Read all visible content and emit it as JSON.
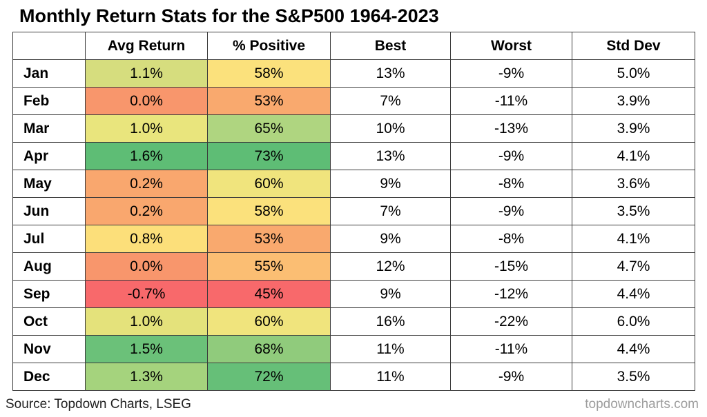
{
  "title": "Monthly Return Stats for the S&P500  1964-2023",
  "table": {
    "columns": [
      "",
      "Avg Return",
      "% Positive",
      "Best",
      "Worst",
      "Std Dev"
    ],
    "column_keys": [
      "avg-return",
      "pct-positive",
      "best",
      "worst",
      "std-dev"
    ],
    "rows": [
      {
        "month": "Jan",
        "cells": [
          {
            "v": "1.1%",
            "bg": "#D6DD7E"
          },
          {
            "v": "58%",
            "bg": "#FBE17C"
          },
          {
            "v": "13%"
          },
          {
            "v": "-9%"
          },
          {
            "v": "5.0%"
          }
        ]
      },
      {
        "month": "Feb",
        "cells": [
          {
            "v": "0.0%",
            "bg": "#F8966C"
          },
          {
            "v": "53%",
            "bg": "#F9A96E"
          },
          {
            "v": "7%"
          },
          {
            "v": "-11%"
          },
          {
            "v": "3.9%"
          }
        ]
      },
      {
        "month": "Mar",
        "cells": [
          {
            "v": "1.0%",
            "bg": "#E9E57D"
          },
          {
            "v": "65%",
            "bg": "#AFD580"
          },
          {
            "v": "10%"
          },
          {
            "v": "-13%"
          },
          {
            "v": "3.9%"
          }
        ]
      },
      {
        "month": "Apr",
        "cells": [
          {
            "v": "1.6%",
            "bg": "#5EBD75"
          },
          {
            "v": "73%",
            "bg": "#5EBD75"
          },
          {
            "v": "13%"
          },
          {
            "v": "-9%"
          },
          {
            "v": "4.1%"
          }
        ]
      },
      {
        "month": "May",
        "cells": [
          {
            "v": "0.2%",
            "bg": "#F9A76E"
          },
          {
            "v": "60%",
            "bg": "#F0E47D"
          },
          {
            "v": "9%"
          },
          {
            "v": "-8%"
          },
          {
            "v": "3.6%"
          }
        ]
      },
      {
        "month": "Jun",
        "cells": [
          {
            "v": "0.2%",
            "bg": "#F9A76E"
          },
          {
            "v": "58%",
            "bg": "#FBE17C"
          },
          {
            "v": "7%"
          },
          {
            "v": "-9%"
          },
          {
            "v": "3.5%"
          }
        ]
      },
      {
        "month": "Jul",
        "cells": [
          {
            "v": "0.8%",
            "bg": "#FCDF7A"
          },
          {
            "v": "53%",
            "bg": "#F9A96E"
          },
          {
            "v": "9%"
          },
          {
            "v": "-8%"
          },
          {
            "v": "4.1%"
          }
        ]
      },
      {
        "month": "Aug",
        "cells": [
          {
            "v": "0.0%",
            "bg": "#F8966C"
          },
          {
            "v": "55%",
            "bg": "#FBBE73"
          },
          {
            "v": "12%"
          },
          {
            "v": "-15%"
          },
          {
            "v": "4.7%"
          }
        ]
      },
      {
        "month": "Sep",
        "cells": [
          {
            "v": "-0.7%",
            "bg": "#F8696B"
          },
          {
            "v": "45%",
            "bg": "#F8696B"
          },
          {
            "v": "9%"
          },
          {
            "v": "-12%"
          },
          {
            "v": "4.4%"
          }
        ]
      },
      {
        "month": "Oct",
        "cells": [
          {
            "v": "1.0%",
            "bg": "#E4E27B"
          },
          {
            "v": "60%",
            "bg": "#F0E47D"
          },
          {
            "v": "16%"
          },
          {
            "v": "-22%"
          },
          {
            "v": "6.0%"
          }
        ]
      },
      {
        "month": "Nov",
        "cells": [
          {
            "v": "1.5%",
            "bg": "#6BC179"
          },
          {
            "v": "68%",
            "bg": "#90CB7C"
          },
          {
            "v": "11%"
          },
          {
            "v": "-11%"
          },
          {
            "v": "4.4%"
          }
        ]
      },
      {
        "month": "Dec",
        "cells": [
          {
            "v": "1.3%",
            "bg": "#A5D37D"
          },
          {
            "v": "72%",
            "bg": "#66BF78"
          },
          {
            "v": "11%"
          },
          {
            "v": "-9%"
          },
          {
            "v": "3.5%"
          }
        ]
      }
    ]
  },
  "footer": {
    "source": "Source: Topdown Charts, LSEG",
    "watermark": "topdowncharts.com"
  },
  "heatmap_colors": {
    "low": "#F8696B",
    "mid": "#FFEB84",
    "high": "#63BE7B"
  },
  "chart_data": {
    "type": "table",
    "title": "Monthly Return Stats for the S&P500  1964-2023",
    "categories": [
      "Jan",
      "Feb",
      "Mar",
      "Apr",
      "May",
      "Jun",
      "Jul",
      "Aug",
      "Sep",
      "Oct",
      "Nov",
      "Dec"
    ],
    "series": [
      {
        "name": "Avg Return",
        "unit": "%",
        "values": [
          1.1,
          0.0,
          1.0,
          1.6,
          0.2,
          0.2,
          0.8,
          0.0,
          -0.7,
          1.0,
          1.5,
          1.3
        ]
      },
      {
        "name": "% Positive",
        "unit": "%",
        "values": [
          58,
          53,
          65,
          73,
          60,
          58,
          53,
          55,
          45,
          60,
          68,
          72
        ]
      },
      {
        "name": "Best",
        "unit": "%",
        "values": [
          13,
          7,
          10,
          13,
          9,
          7,
          9,
          12,
          9,
          16,
          11,
          11
        ]
      },
      {
        "name": "Worst",
        "unit": "%",
        "values": [
          -9,
          -11,
          -13,
          -9,
          -8,
          -9,
          -8,
          -15,
          -12,
          -22,
          -11,
          -9
        ]
      },
      {
        "name": "Std Dev",
        "unit": "%",
        "values": [
          5.0,
          3.9,
          3.9,
          4.1,
          3.6,
          3.5,
          4.1,
          4.7,
          4.4,
          6.0,
          4.4,
          3.5
        ]
      }
    ],
    "heatmap_columns": [
      "Avg Return",
      "% Positive"
    ],
    "legend_position": "none",
    "grid": true,
    "source": "Source: Topdown Charts, LSEG"
  }
}
